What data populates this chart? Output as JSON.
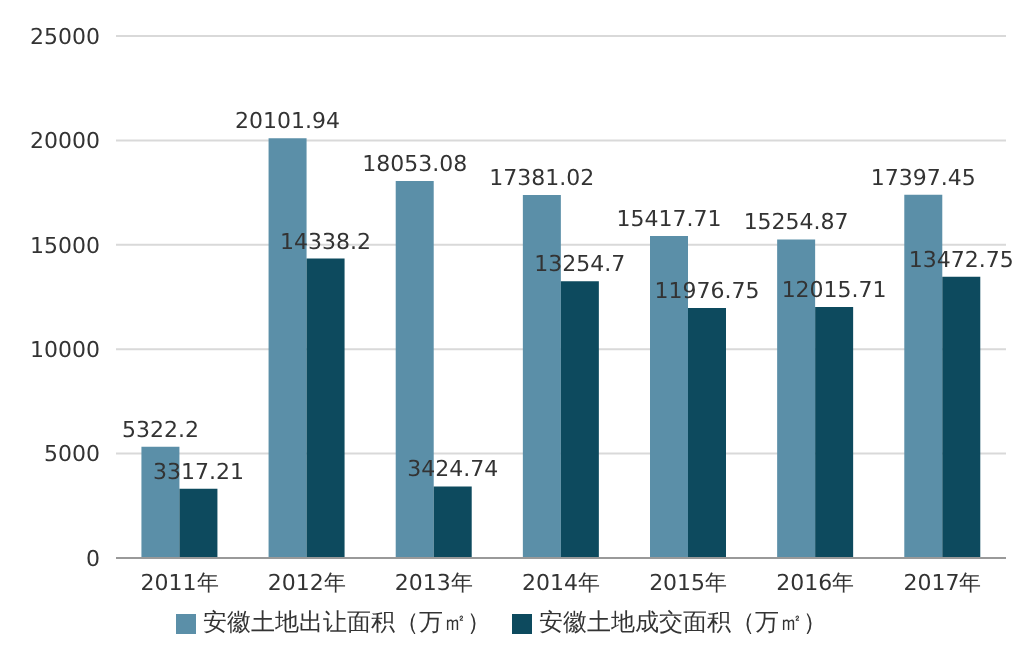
{
  "chart_data": {
    "type": "bar",
    "categories": [
      "2011年",
      "2012年",
      "2013年",
      "2014年",
      "2015年",
      "2016年",
      "2017年"
    ],
    "series": [
      {
        "name": "安徽土地出让面积（万㎡）",
        "color": "#5b8fa8",
        "values": [
          5322.2,
          20101.94,
          18053.08,
          17381.02,
          15417.71,
          15254.87,
          17397.45
        ]
      },
      {
        "name": "安徽土地成交面积（万㎡）",
        "color": "#0d4a5e",
        "values": [
          3317.21,
          14338.2,
          3424.74,
          13254.7,
          11976.75,
          12015.71,
          13472.75
        ]
      }
    ],
    "ylim": [
      0,
      25000
    ],
    "yticks": [
      0,
      5000,
      10000,
      15000,
      20000,
      25000
    ],
    "grid": "y",
    "legend": "bottom",
    "data_labels": true
  }
}
